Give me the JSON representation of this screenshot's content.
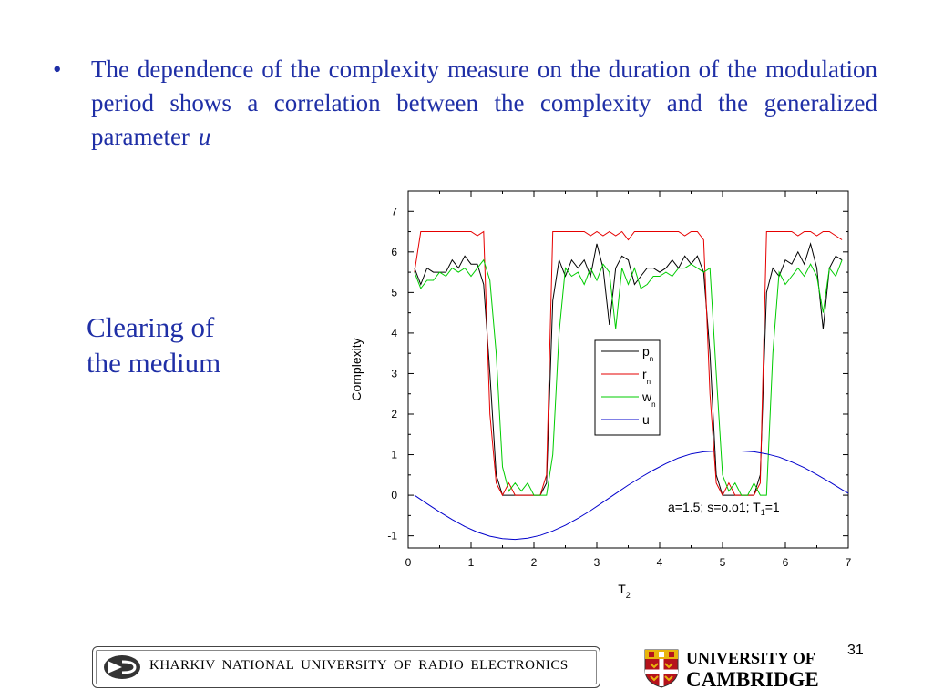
{
  "slide": {
    "bullet_symbol": "•",
    "bullet_text": "The dependence of the complexity measure on the duration of the modulation period shows a correlation between the complexity and the generalized parameter",
    "bullet_param": "u",
    "side_label_line1": "Clearing of",
    "side_label_line2": "the medium",
    "page_number": "31"
  },
  "footer": {
    "kharkiv_text": "KHARKIV  NATIONAL  UNIVERSITY  OF  RADIO  ELECTRONICS",
    "cambridge_line1": "UNIVERSITY OF",
    "cambridge_line2": "CAMBRIDGE"
  },
  "chart_data": {
    "type": "line",
    "ylabel": "Complexity",
    "xlabel": "T",
    "xlabel_sub": "2",
    "xlim": [
      0,
      7
    ],
    "ylim": [
      -1.3,
      7.5
    ],
    "xticks": [
      0,
      1,
      2,
      3,
      4,
      5,
      6,
      7
    ],
    "yticks": [
      -1,
      0,
      1,
      2,
      3,
      4,
      5,
      6,
      7
    ],
    "legend_position": "center-right",
    "annotation": {
      "prefix": "a=1.5;  s=o.o1;  T",
      "sub": "1",
      "suffix": "=1"
    },
    "series": [
      {
        "name": "p",
        "name_sub": "n",
        "color": "#000000",
        "x": [
          0.1,
          0.2,
          0.3,
          0.4,
          0.5,
          0.6,
          0.7,
          0.8,
          0.9,
          1.0,
          1.1,
          1.2,
          1.3,
          1.4,
          1.5,
          1.6,
          1.7,
          1.8,
          1.9,
          2.0,
          2.1,
          2.2,
          2.3,
          2.4,
          2.5,
          2.6,
          2.7,
          2.8,
          2.9,
          3.0,
          3.1,
          3.2,
          3.3,
          3.4,
          3.5,
          3.6,
          3.7,
          3.8,
          3.9,
          4.0,
          4.1,
          4.2,
          4.3,
          4.4,
          4.5,
          4.6,
          4.7,
          4.8,
          4.9,
          5.0,
          5.1,
          5.2,
          5.3,
          5.4,
          5.5,
          5.6,
          5.7,
          5.8,
          5.9,
          6.0,
          6.1,
          6.2,
          6.3,
          6.4,
          6.5,
          6.6,
          6.7,
          6.8,
          6.9
        ],
        "values": [
          5.6,
          5.2,
          5.6,
          5.5,
          5.5,
          5.5,
          5.8,
          5.6,
          5.9,
          5.7,
          5.7,
          5.2,
          3.0,
          0.5,
          0.0,
          0.0,
          0.0,
          0.0,
          0.0,
          0.0,
          0.0,
          0.3,
          4.8,
          5.8,
          5.4,
          5.8,
          5.6,
          5.8,
          5.4,
          6.2,
          5.6,
          4.2,
          5.6,
          5.9,
          5.8,
          5.2,
          5.4,
          5.6,
          5.6,
          5.5,
          5.6,
          5.8,
          5.6,
          5.9,
          5.7,
          5.9,
          5.5,
          3.5,
          0.5,
          0.0,
          0.0,
          0.0,
          0.0,
          0.0,
          0.0,
          0.5,
          5.0,
          5.6,
          5.4,
          5.8,
          5.7,
          6.0,
          5.7,
          6.2,
          5.6,
          4.1,
          5.6,
          5.9,
          5.8
        ]
      },
      {
        "name": "r",
        "name_sub": "n",
        "color": "#e60000",
        "x": [
          0.1,
          0.2,
          0.3,
          0.4,
          0.5,
          0.6,
          0.7,
          0.8,
          0.9,
          1.0,
          1.1,
          1.2,
          1.3,
          1.4,
          1.5,
          1.6,
          1.7,
          1.8,
          1.9,
          2.0,
          2.1,
          2.2,
          2.3,
          2.4,
          2.5,
          2.6,
          2.7,
          2.8,
          2.9,
          3.0,
          3.1,
          3.2,
          3.3,
          3.4,
          3.5,
          3.6,
          3.7,
          3.8,
          3.9,
          4.0,
          4.1,
          4.2,
          4.3,
          4.4,
          4.5,
          4.6,
          4.7,
          4.8,
          4.9,
          5.0,
          5.1,
          5.2,
          5.3,
          5.4,
          5.5,
          5.6,
          5.7,
          5.8,
          5.9,
          6.0,
          6.1,
          6.2,
          6.3,
          6.4,
          6.5,
          6.6,
          6.7,
          6.8,
          6.9
        ],
        "values": [
          5.5,
          6.5,
          6.5,
          6.5,
          6.5,
          6.5,
          6.5,
          6.5,
          6.5,
          6.5,
          6.4,
          6.5,
          2.0,
          0.3,
          0.0,
          0.3,
          0.0,
          0.0,
          0.0,
          0.0,
          0.0,
          0.5,
          6.5,
          6.5,
          6.5,
          6.5,
          6.5,
          6.5,
          6.4,
          6.5,
          6.4,
          6.5,
          6.4,
          6.5,
          6.3,
          6.5,
          6.5,
          6.5,
          6.5,
          6.5,
          6.5,
          6.5,
          6.5,
          6.4,
          6.5,
          6.5,
          6.3,
          2.5,
          0.3,
          0.0,
          0.3,
          0.0,
          0.0,
          0.0,
          0.0,
          0.3,
          6.5,
          6.5,
          6.5,
          6.5,
          6.5,
          6.4,
          6.5,
          6.5,
          6.4,
          6.5,
          6.5,
          6.4,
          6.3
        ]
      },
      {
        "name": "w",
        "name_sub": "n",
        "color": "#00cc00",
        "x": [
          0.1,
          0.2,
          0.3,
          0.4,
          0.5,
          0.6,
          0.7,
          0.8,
          0.9,
          1.0,
          1.1,
          1.2,
          1.3,
          1.4,
          1.5,
          1.6,
          1.7,
          1.8,
          1.9,
          2.0,
          2.1,
          2.2,
          2.3,
          2.4,
          2.5,
          2.6,
          2.7,
          2.8,
          2.9,
          3.0,
          3.1,
          3.2,
          3.3,
          3.4,
          3.5,
          3.6,
          3.7,
          3.8,
          3.9,
          4.0,
          4.1,
          4.2,
          4.3,
          4.4,
          4.5,
          4.6,
          4.7,
          4.8,
          4.9,
          5.0,
          5.1,
          5.2,
          5.3,
          5.4,
          5.5,
          5.6,
          5.7,
          5.8,
          5.9,
          6.0,
          6.1,
          6.2,
          6.3,
          6.4,
          6.5,
          6.6,
          6.7,
          6.8,
          6.9
        ],
        "values": [
          5.5,
          5.1,
          5.3,
          5.3,
          5.5,
          5.4,
          5.6,
          5.5,
          5.6,
          5.4,
          5.6,
          5.8,
          5.3,
          3.5,
          0.7,
          0.1,
          0.3,
          0.1,
          0.3,
          0.0,
          0.0,
          0.0,
          1.0,
          4.0,
          5.6,
          5.4,
          5.5,
          5.2,
          5.6,
          5.3,
          5.7,
          5.5,
          4.1,
          5.6,
          5.2,
          5.6,
          5.1,
          5.2,
          5.4,
          5.4,
          5.5,
          5.4,
          5.6,
          5.6,
          5.7,
          5.6,
          5.5,
          5.6,
          3.0,
          0.5,
          0.1,
          0.3,
          0.0,
          0.0,
          0.3,
          0.0,
          0.0,
          3.5,
          5.5,
          5.2,
          5.4,
          5.6,
          5.4,
          5.7,
          5.4,
          4.5,
          5.6,
          5.4,
          5.8
        ]
      },
      {
        "name": "u",
        "name_sub": "",
        "color": "#0000cc",
        "x": [
          0.1,
          0.3,
          0.5,
          0.7,
          0.9,
          1.1,
          1.3,
          1.5,
          1.7,
          1.9,
          2.1,
          2.3,
          2.5,
          2.7,
          2.9,
          3.1,
          3.3,
          3.5,
          3.7,
          3.9,
          4.1,
          4.3,
          4.5,
          4.7,
          4.9,
          5.1,
          5.3,
          5.5,
          5.7,
          5.9,
          6.1,
          6.3,
          6.5,
          6.7,
          6.9,
          7.0
        ],
        "values": [
          0.0,
          -0.21,
          -0.41,
          -0.6,
          -0.77,
          -0.91,
          -1.01,
          -1.07,
          -1.09,
          -1.06,
          -0.99,
          -0.88,
          -0.74,
          -0.57,
          -0.38,
          -0.17,
          0.04,
          0.25,
          0.44,
          0.62,
          0.78,
          0.92,
          1.02,
          1.07,
          1.09,
          1.09,
          1.09,
          1.07,
          1.02,
          0.94,
          0.82,
          0.68,
          0.51,
          0.33,
          0.14,
          0.05
        ]
      }
    ]
  }
}
